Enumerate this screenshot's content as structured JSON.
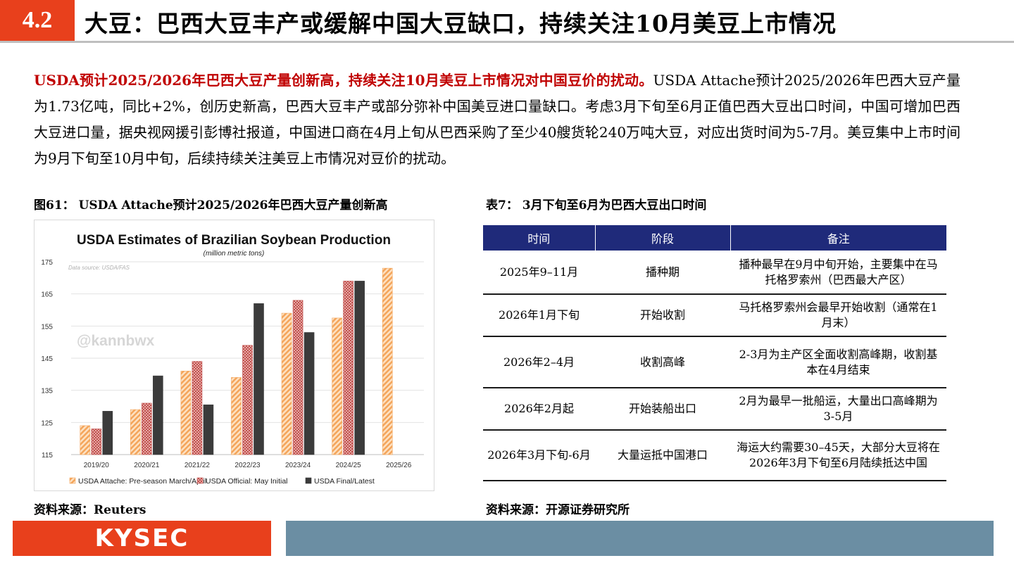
{
  "header": {
    "section_number": "4.2",
    "title": "大豆：巴西大豆丰产或缓解中国大豆缺口，持续关注10月美豆上市情况"
  },
  "intro": {
    "highlight": "USDA预计2025/2026年巴西大豆产量创新高，持续关注10月美豆上市情况对中国豆价的扰动。",
    "body": "USDA Attache预计2025/2026年巴西大豆产量为1.73亿吨，同比+2%，创历史新高，巴西大豆丰产或部分弥补中国美豆进口量缺口。考虑3月下旬至6月正值巴西大豆出口时间，中国可增加巴西大豆进口量，据央视网援引彭博社报道，中国进口商在4月上旬从巴西采购了至少40艘货轮240万吨大豆，对应出货时间为5-7月。美豆集中上市时间为9月下旬至10月中旬，后续持续关注美豆上市情况对豆价的扰动。"
  },
  "figure": {
    "caption": "图61：  USDA Attache预计2025/2026年巴西大豆产量创新高",
    "source": "资料来源：Reuters"
  },
  "chart_data": {
    "type": "bar",
    "title": "USDA Estimates of Brazilian Soybean Production",
    "subtitle": "(million metric tons)",
    "annotation": "Data source: USDA/FAS",
    "watermark": "@kannbwx",
    "categories": [
      "2019/20",
      "2020/21",
      "2021/22",
      "2022/23",
      "2023/24",
      "2024/25",
      "2025/26"
    ],
    "series": [
      {
        "name": "USDA Attache: Pre-season March/April",
        "values": [
          124,
          129,
          141,
          139,
          159,
          157.5,
          173
        ],
        "color": "#f4a55b"
      },
      {
        "name": "USDA Official: May Initial",
        "values": [
          123,
          131,
          144,
          149,
          163,
          169,
          null
        ],
        "color": "#c0504d"
      },
      {
        "name": "USDA Final/Latest",
        "values": [
          128.5,
          139.5,
          130.5,
          162,
          153,
          169,
          null
        ],
        "color": "#3b3b3b"
      }
    ],
    "yticks": [
      115,
      125,
      135,
      145,
      155,
      165,
      175
    ],
    "ylim": [
      115,
      175
    ],
    "grid": true,
    "legend": "bottom"
  },
  "table": {
    "caption": "表7：  3月下旬至6月为巴西大豆出口时间",
    "source": "资料来源：开源证券研究所",
    "headers": [
      "时间",
      "阶段",
      "备注"
    ],
    "rows": [
      {
        "time": "2025年9–11月",
        "stage": "播种期",
        "note": "播种最早在9月中旬开始，主要集中在马托格罗索州（巴西最大产区）"
      },
      {
        "time": "2026年1月下旬",
        "stage": "开始收割",
        "note": "马托格罗索州会最早开始收割（通常在1月末）"
      },
      {
        "time": "2026年2–4月",
        "stage": "收割高峰",
        "note": "2-3月为主产区全面收割高峰期，收割基本在4月结束"
      },
      {
        "time": "2026年2月起",
        "stage": "开始装船出口",
        "note": "2月为最早一批船运，大量出口高峰期为3-5月"
      },
      {
        "time": "2026年3月下旬-6月",
        "stage": "大量运抵中国港口",
        "note": "海运大约需要30–45天，大部分大豆将在2026年3月下旬至6月陆续抵达中国"
      }
    ]
  },
  "footer": {
    "logo": "KYSEC"
  }
}
